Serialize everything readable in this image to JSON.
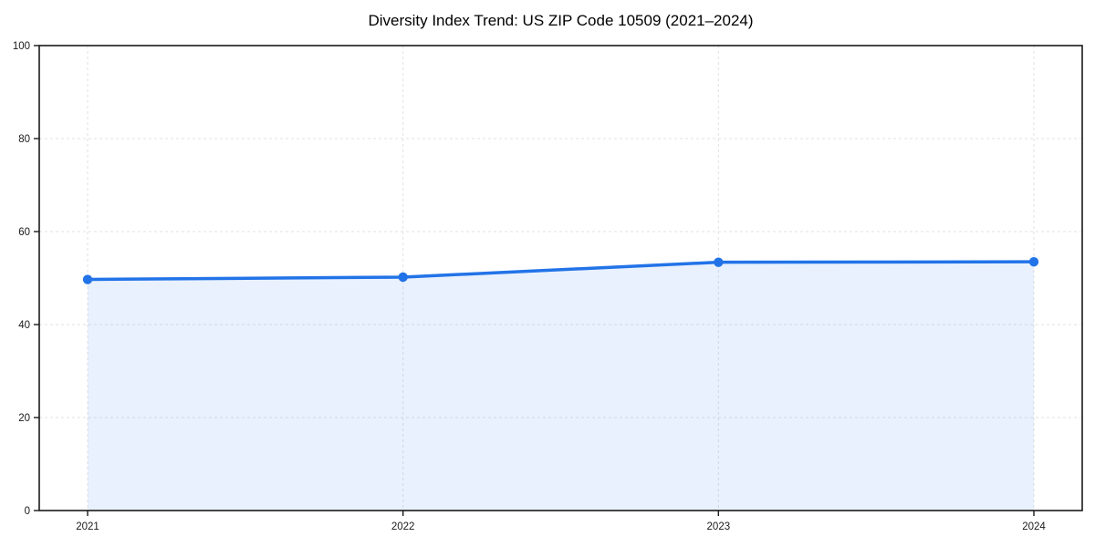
{
  "page": {
    "background": "#ffffff"
  },
  "chart_data": {
    "type": "line",
    "title": "Diversity Index Trend: US ZIP Code 10509 (2021–2024)",
    "x": [
      "2021",
      "2022",
      "2023",
      "2024"
    ],
    "series": [
      {
        "name": "Diversity Index",
        "values": [
          49.7,
          50.2,
          53.4,
          53.5
        ]
      }
    ],
    "ylim": [
      0,
      100
    ],
    "yticks": [
      0,
      20,
      40,
      60,
      80,
      100
    ],
    "xlabel": "",
    "ylabel": "",
    "grid": "dashed-both",
    "legend_position": "none",
    "area_fill": true,
    "marker": "circle",
    "colors": {
      "line": "#2273e8",
      "marker": "#2273e8",
      "area": "#2273e8",
      "area_opacity": "0.10",
      "grid": "#e2e2e2",
      "axis": "#1a1a1a",
      "tick_text": "#1a1a1a",
      "title_text": "#000000"
    }
  }
}
